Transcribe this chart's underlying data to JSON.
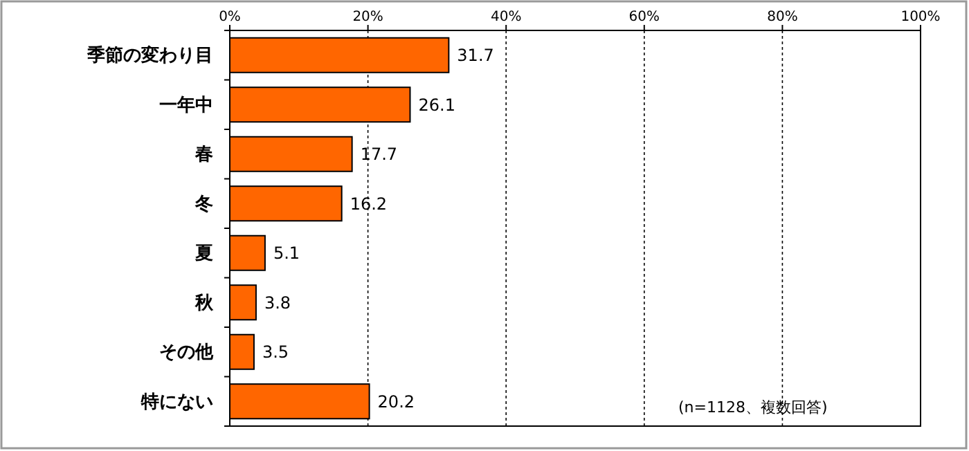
{
  "chart_data": {
    "type": "bar",
    "orientation": "horizontal",
    "categories": [
      "季節の変わり目",
      "一年中",
      "春",
      "冬",
      "夏",
      "秋",
      "その他",
      "特にない"
    ],
    "values": [
      31.7,
      26.1,
      17.7,
      16.2,
      5.1,
      3.8,
      3.5,
      20.2
    ],
    "color": "#ff6600",
    "xlim": [
      0,
      100
    ],
    "xticks": [
      {
        "value": 0,
        "label": "0%"
      },
      {
        "value": 20,
        "label": "20%"
      },
      {
        "value": 40,
        "label": "40%"
      },
      {
        "value": 60,
        "label": "60%"
      },
      {
        "value": 80,
        "label": "80%"
      },
      {
        "value": 100,
        "label": "100%"
      }
    ],
    "grid": "x",
    "data_labels": true,
    "annotations": [
      "(n=1128、複数回答)"
    ]
  }
}
